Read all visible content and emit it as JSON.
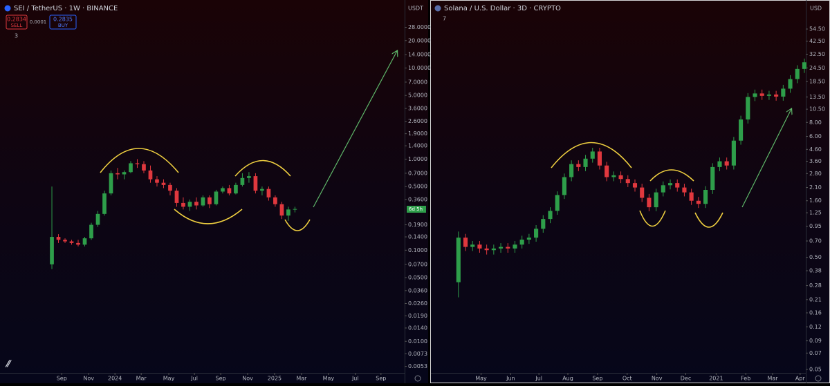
{
  "chart_data": [
    {
      "type": "candlestick",
      "title": "SEI / TetherUS · 1W · BINANCE",
      "sell_price": "0.2834",
      "sell_label": "SELL",
      "spread": "0.0001",
      "buy_price": "0.2835",
      "buy_label": "BUY",
      "indicators_count": "3",
      "currency": "USDT",
      "countdown": "6d 5h",
      "log_scale": true,
      "grid": false,
      "up_color": "#2e9e4a",
      "down_color": "#e0383e",
      "open": [
        0.07,
        0.14,
        0.13,
        0.125,
        0.12,
        0.115,
        0.135,
        0.19,
        0.25,
        0.42,
        0.7,
        0.68,
        0.72,
        0.9,
        0.88,
        0.75,
        0.6,
        0.55,
        0.52,
        0.45,
        0.33,
        0.3,
        0.34,
        0.31,
        0.38,
        0.32,
        0.44,
        0.48,
        0.42,
        0.52,
        0.62,
        0.65,
        0.45,
        0.47,
        0.38,
        0.32,
        0.24,
        0.28
      ],
      "high": [
        0.5,
        0.15,
        0.135,
        0.13,
        0.13,
        0.14,
        0.2,
        0.27,
        0.45,
        0.75,
        0.8,
        0.75,
        0.95,
        1.0,
        0.95,
        0.85,
        0.65,
        0.6,
        0.55,
        0.48,
        0.38,
        0.36,
        0.38,
        0.4,
        0.4,
        0.46,
        0.5,
        0.52,
        0.55,
        0.7,
        0.72,
        0.7,
        0.5,
        0.5,
        0.4,
        0.34,
        0.3,
        0.3
      ],
      "low": [
        0.062,
        0.12,
        0.12,
        0.115,
        0.11,
        0.11,
        0.13,
        0.18,
        0.24,
        0.4,
        0.6,
        0.6,
        0.7,
        0.8,
        0.7,
        0.55,
        0.5,
        0.48,
        0.4,
        0.3,
        0.28,
        0.27,
        0.28,
        0.3,
        0.29,
        0.31,
        0.42,
        0.4,
        0.41,
        0.5,
        0.55,
        0.42,
        0.4,
        0.35,
        0.3,
        0.22,
        0.21,
        0.26
      ],
      "close": [
        0.14,
        0.13,
        0.125,
        0.12,
        0.115,
        0.135,
        0.19,
        0.25,
        0.42,
        0.7,
        0.68,
        0.72,
        0.9,
        0.88,
        0.75,
        0.6,
        0.55,
        0.52,
        0.45,
        0.33,
        0.3,
        0.34,
        0.31,
        0.38,
        0.32,
        0.44,
        0.48,
        0.42,
        0.52,
        0.62,
        0.65,
        0.45,
        0.47,
        0.38,
        0.32,
        0.24,
        0.28,
        0.2834
      ],
      "ylim": [
        0.0045,
        38
      ],
      "yticks": [
        {
          "value": 28,
          "label": "28.0000"
        },
        {
          "value": 20,
          "label": "20.0000"
        },
        {
          "value": 14,
          "label": "14.0000"
        },
        {
          "value": 10,
          "label": "10.0000"
        },
        {
          "value": 7,
          "label": "7.0000"
        },
        {
          "value": 5,
          "label": "5.0000"
        },
        {
          "value": 3.6,
          "label": "3.6000"
        },
        {
          "value": 2.6,
          "label": "2.6000"
        },
        {
          "value": 1.9,
          "label": "1.9000"
        },
        {
          "value": 1.4,
          "label": "1.4000"
        },
        {
          "value": 1,
          "label": "1.0000"
        },
        {
          "value": 0.7,
          "label": "0.7000"
        },
        {
          "value": 0.5,
          "label": "0.5000"
        },
        {
          "value": 0.36,
          "label": "0.3600"
        },
        {
          "value": 0.19,
          "label": "0.1900"
        },
        {
          "value": 0.14,
          "label": "0.1400"
        },
        {
          "value": 0.1,
          "label": "0.1000"
        },
        {
          "value": 0.07,
          "label": "0.0700"
        },
        {
          "value": 0.05,
          "label": "0.0500"
        },
        {
          "value": 0.036,
          "label": "0.0360"
        },
        {
          "value": 0.026,
          "label": "0.0260"
        },
        {
          "value": 0.019,
          "label": "0.0190"
        },
        {
          "value": 0.014,
          "label": "0.0140"
        },
        {
          "value": 0.01,
          "label": "0.0100"
        },
        {
          "value": 0.0073,
          "label": "0.0073"
        },
        {
          "value": 0.0053,
          "label": "0.0053"
        }
      ],
      "xlim": [
        -7.9,
        53.7
      ],
      "xticks": [
        {
          "value": 1.5,
          "label": "Sep"
        },
        {
          "value": 5.6,
          "label": "Nov"
        },
        {
          "value": 9.6,
          "label": "2024"
        },
        {
          "value": 13.6,
          "label": "Mar"
        },
        {
          "value": 17.8,
          "label": "May"
        },
        {
          "value": 21.7,
          "label": "Jul"
        },
        {
          "value": 25.7,
          "label": "Sep"
        },
        {
          "value": 29.8,
          "label": "Nov"
        },
        {
          "value": 33.9,
          "label": "2025"
        },
        {
          "value": 38,
          "label": "Mar"
        },
        {
          "value": 42.1,
          "label": "May"
        },
        {
          "value": 46.2,
          "label": "Jul"
        },
        {
          "value": 50.1,
          "label": "Sep"
        }
      ]
    },
    {
      "type": "candlestick",
      "title": "Solana / U.S. Dollar · 3D · CRYPTO",
      "indicators_count": "7",
      "currency": "USD",
      "log_scale": true,
      "grid": false,
      "up_color": "#2e9e4a",
      "down_color": "#e0383e",
      "open": [
        0.3,
        0.75,
        0.62,
        0.65,
        0.6,
        0.58,
        0.6,
        0.62,
        0.6,
        0.65,
        0.72,
        0.75,
        0.9,
        1.1,
        1.3,
        1.8,
        2.6,
        3.4,
        3.2,
        3.8,
        4.4,
        3.3,
        2.6,
        2.7,
        2.5,
        2.3,
        2.1,
        1.7,
        1.4,
        1.9,
        2.2,
        2.3,
        2.1,
        1.9,
        1.6,
        1.5,
        2.0,
        3.2,
        3.6,
        3.3,
        5.5,
        8.5,
        13.5,
        14.5,
        13.8,
        14.2,
        13.6,
        16,
        19.5,
        24
      ],
      "high": [
        0.85,
        0.81,
        0.7,
        0.7,
        0.65,
        0.65,
        0.67,
        0.67,
        0.7,
        0.78,
        0.81,
        0.97,
        1.19,
        1.4,
        1.94,
        2.8,
        3.67,
        3.67,
        4.1,
        4.75,
        4.75,
        3.56,
        2.92,
        2.92,
        2.7,
        2.48,
        2.27,
        1.84,
        2.05,
        2.38,
        2.48,
        2.48,
        2.27,
        2.05,
        1.73,
        2.16,
        3.46,
        3.89,
        3.89,
        5.94,
        9.18,
        14.6,
        15.7,
        15.7,
        15.3,
        15.3,
        17.3,
        21.1,
        25.9,
        29.7
      ],
      "low": [
        0.22,
        0.57,
        0.57,
        0.55,
        0.53,
        0.53,
        0.55,
        0.55,
        0.55,
        0.6,
        0.66,
        0.69,
        0.83,
        1.01,
        1.2,
        1.66,
        2.39,
        2.94,
        2.94,
        3.5,
        3.04,
        2.39,
        2.39,
        2.3,
        2.12,
        1.93,
        1.56,
        1.29,
        1.29,
        1.75,
        2.02,
        1.93,
        1.75,
        1.47,
        1.38,
        1.38,
        1.84,
        2.94,
        3.04,
        3.04,
        5.06,
        7.82,
        12.4,
        12.7,
        12.7,
        12.5,
        12.5,
        14.7,
        17.9,
        22.1
      ],
      "close": [
        0.75,
        0.62,
        0.65,
        0.6,
        0.58,
        0.6,
        0.62,
        0.6,
        0.65,
        0.72,
        0.75,
        0.9,
        1.1,
        1.3,
        1.8,
        2.6,
        3.4,
        3.2,
        3.8,
        4.4,
        3.3,
        2.6,
        2.7,
        2.5,
        2.3,
        2.1,
        1.7,
        1.4,
        1.9,
        2.2,
        2.3,
        2.1,
        1.9,
        1.6,
        1.5,
        2.0,
        3.2,
        3.6,
        3.3,
        5.5,
        8.5,
        13.5,
        14.5,
        13.8,
        14.2,
        13.6,
        16,
        19.5,
        24,
        27.5
      ],
      "ylim": [
        0.0466,
        72.4
      ],
      "yticks": [
        {
          "value": 54.5,
          "label": "54.50"
        },
        {
          "value": 42.5,
          "label": "42.50"
        },
        {
          "value": 32.5,
          "label": "32.50"
        },
        {
          "value": 24.5,
          "label": "24.50"
        },
        {
          "value": 18.5,
          "label": "18.50"
        },
        {
          "value": 13.5,
          "label": "13.50"
        },
        {
          "value": 10.5,
          "label": "10.50"
        },
        {
          "value": 8,
          "label": "8.00"
        },
        {
          "value": 6,
          "label": "6.00"
        },
        {
          "value": 4.6,
          "label": "4.60"
        },
        {
          "value": 3.6,
          "label": "3.60"
        },
        {
          "value": 2.8,
          "label": "2.80"
        },
        {
          "value": 2.1,
          "label": "2.10"
        },
        {
          "value": 1.6,
          "label": "1.60"
        },
        1.25,
        0.95,
        {
          "value": 0.7,
          "label": "0.70"
        },
        {
          "value": 0.5,
          "label": "0.50"
        },
        0.38,
        0.28,
        0.21,
        0.16,
        0.12,
        0.09,
        0.07,
        0.05
      ],
      "xlim": [
        -3.9,
        49.2
      ],
      "xticks": [
        {
          "value": 3.2,
          "label": "May"
        },
        {
          "value": 7.4,
          "label": "Jun"
        },
        {
          "value": 11.4,
          "label": "Jul"
        },
        {
          "value": 15.5,
          "label": "Aug"
        },
        {
          "value": 19.7,
          "label": "Sep"
        },
        {
          "value": 23.9,
          "label": "Oct"
        },
        {
          "value": 28.1,
          "label": "Nov"
        },
        {
          "value": 32.2,
          "label": "Dec"
        },
        {
          "value": 36.5,
          "label": "2021"
        },
        {
          "value": 40.7,
          "label": "Feb"
        },
        {
          "value": 44.5,
          "label": "Mar"
        },
        {
          "value": 48.4,
          "label": "Apr"
        }
      ]
    }
  ]
}
